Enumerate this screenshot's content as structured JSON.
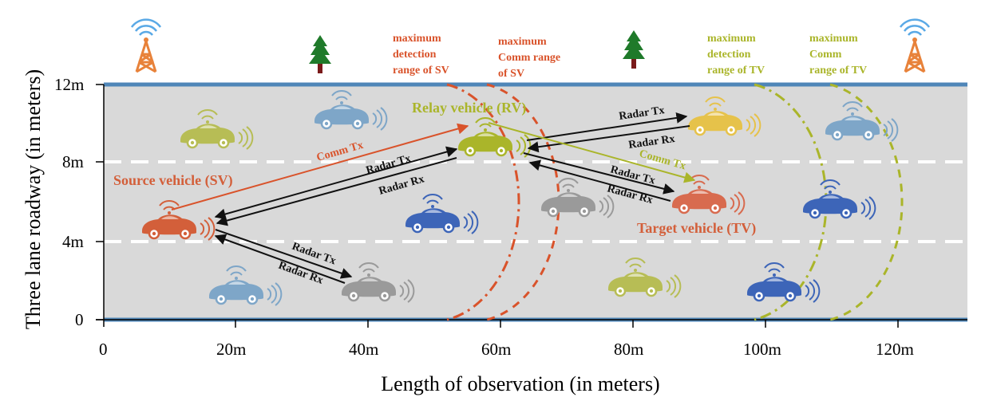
{
  "axes": {
    "ylabel": "Three lane roadway (in meters)",
    "xlabel": "Length of observation (in meters)",
    "y_ticks": [
      "0",
      "4m",
      "8m",
      "12m"
    ],
    "x_ticks": [
      "0",
      "20m",
      "40m",
      "60m",
      "80m",
      "100m",
      "120m"
    ]
  },
  "labels": {
    "sv_detect": [
      "maximum",
      "detection",
      "range of SV"
    ],
    "sv_comm": [
      "maximum",
      "Comm range",
      "of SV"
    ],
    "tv_detect": [
      "maximum",
      "detection",
      "range of TV"
    ],
    "tv_comm": [
      "maximum",
      "Comm",
      "range of TV"
    ],
    "relay": "Relay vehicle (RV)",
    "source": "Source vehicle (SV)",
    "target": "Target vehicle (TV)"
  },
  "links": {
    "sv_comm_tx": "Comm Tx",
    "sv_radar_tx_up": "Radar Tx",
    "sv_radar_rx_up": "Radar Rx",
    "sv_radar_tx_down": "Radar Tx",
    "sv_radar_rx_down": "Radar Rx",
    "rv_radar_tx_top": "Radar Tx",
    "rv_radar_rx_top": "Radar Rx",
    "rv_comm_tx": "Comm Tx",
    "rv_radar_tx_tv": "Radar Tx",
    "rv_radar_rx_tv": "Radar Rx"
  },
  "colors": {
    "road": "#d9d9d9",
    "road_edge": "#4f86b8",
    "sv": "#d35f3a",
    "rv": "#aab52a",
    "tv": "#d86b4f",
    "gray": "#9a9a9a",
    "blue": "#3d65b8",
    "lightblue": "#7ea6c8",
    "yellow": "#e6c24a",
    "olive": "#b7bd55"
  }
}
